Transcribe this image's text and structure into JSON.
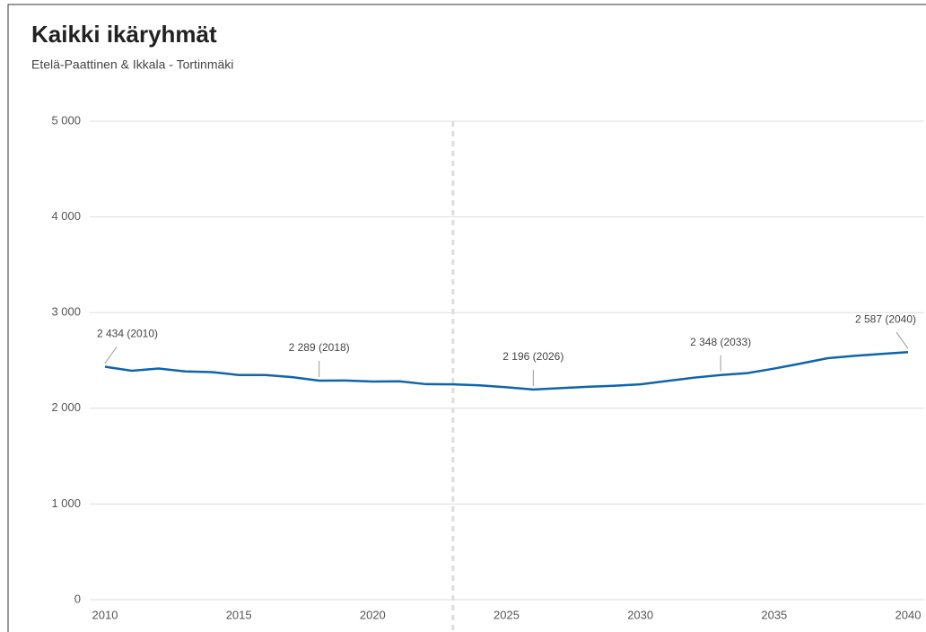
{
  "chart_data": {
    "type": "line",
    "title": "Kaikki ikäryhmät",
    "subtitle": "Etelä-Paattinen & Ikkala - Tortinmäki",
    "x": [
      2010,
      2011,
      2012,
      2013,
      2014,
      2015,
      2016,
      2017,
      2018,
      2019,
      2020,
      2021,
      2022,
      2023,
      2024,
      2025,
      2026,
      2027,
      2028,
      2029,
      2030,
      2031,
      2032,
      2033,
      2034,
      2035,
      2036,
      2037,
      2038,
      2039,
      2040
    ],
    "series": [
      {
        "name": "Kaikki ikäryhmät",
        "color": "#0f64aa",
        "values": [
          2434,
          2392,
          2415,
          2385,
          2378,
          2348,
          2347,
          2325,
          2289,
          2290,
          2280,
          2282,
          2252,
          2250,
          2240,
          2220,
          2196,
          2210,
          2225,
          2235,
          2250,
          2285,
          2320,
          2348,
          2368,
          2415,
          2468,
          2523,
          2548,
          2568,
          2587
        ],
        "value_labels": [
          "2 434 (2010)",
          null,
          null,
          null,
          null,
          null,
          null,
          null,
          "2 289 (2018)",
          null,
          null,
          null,
          null,
          null,
          null,
          null,
          "2 196 (2026)",
          null,
          null,
          null,
          null,
          null,
          null,
          "2 348 (2033)",
          null,
          null,
          null,
          null,
          null,
          null,
          "2 587 (2040)"
        ]
      }
    ],
    "xlim": [
      2010,
      2040
    ],
    "xticks": [
      2010,
      2015,
      2020,
      2025,
      2030,
      2035,
      2040
    ],
    "ylim": [
      0,
      5000
    ],
    "yticks": [
      0,
      {
        "value": 1000,
        "label": "1 000"
      },
      {
        "value": 2000,
        "label": "2 000"
      },
      {
        "value": 3000,
        "label": "3 000"
      },
      {
        "value": 4000,
        "label": "4 000"
      },
      {
        "value": 5000,
        "label": "5 000"
      }
    ],
    "grid": true,
    "divider_x": 2023
  }
}
